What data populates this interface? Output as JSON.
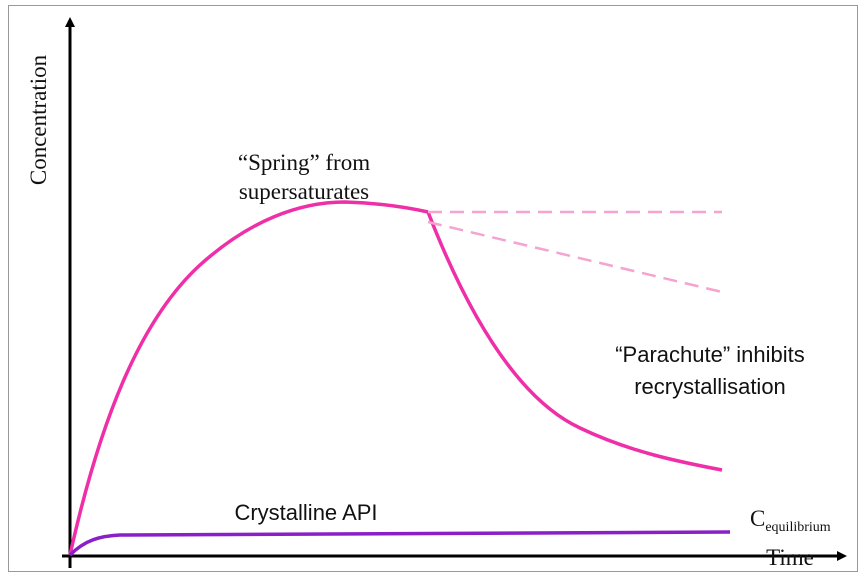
{
  "axes": {
    "y_label": "Concentration",
    "x_label": "Time"
  },
  "annotations": {
    "spring": [
      "“Spring” from",
      "supersaturates"
    ],
    "parachute": [
      "“Parachute” inhibits",
      "recrystallisation"
    ],
    "crystalline": "Crystalline API",
    "equilibrium": {
      "main": "C",
      "sub": "equilibrium"
    }
  }
}
